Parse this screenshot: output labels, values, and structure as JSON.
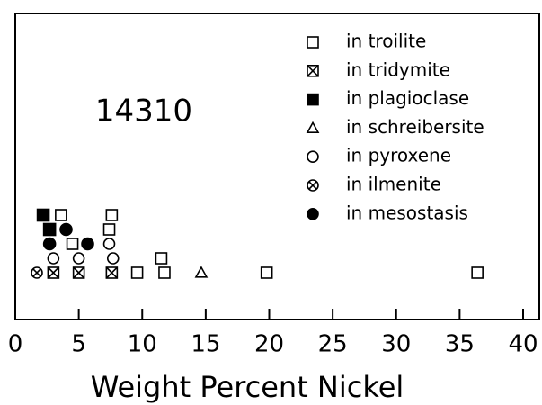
{
  "chart_data": {
    "type": "scatter",
    "annotation": "14310",
    "xlabel": "Weight Percent Nickel",
    "xlim": [
      0,
      40
    ],
    "xticks": [
      0,
      5,
      10,
      15,
      20,
      25,
      30,
      35,
      40
    ],
    "series": [
      {
        "name": "in troilite",
        "marker": "square-open",
        "color": "#000",
        "x": [
          9.6,
          11.75,
          19.8,
          36.4,
          11.5,
          4.5,
          7.4,
          3.6,
          7.6
        ],
        "y": [
          1,
          1,
          1,
          1,
          2,
          3,
          4,
          5,
          5
        ]
      },
      {
        "name": "in tridymite",
        "marker": "square-x",
        "color": "#000",
        "x": [
          3.0,
          5.0,
          7.6
        ],
        "y": [
          1,
          1,
          1
        ]
      },
      {
        "name": "in plagioclase",
        "marker": "square-filled",
        "color": "#000",
        "x": [
          2.7,
          2.2
        ],
        "y": [
          4,
          5
        ]
      },
      {
        "name": "in schreibersite",
        "marker": "triangle-open",
        "color": "#000",
        "x": [
          14.65
        ],
        "y": [
          1
        ]
      },
      {
        "name": "in pyroxene",
        "marker": "circle-open",
        "color": "#000",
        "x": [
          3.0,
          5.0,
          7.7,
          7.4
        ],
        "y": [
          2,
          2,
          2,
          3
        ]
      },
      {
        "name": "in ilmenite",
        "marker": "circle-x",
        "color": "#000",
        "x": [
          1.7
        ],
        "y": [
          1
        ]
      },
      {
        "name": "in mesostasis",
        "marker": "circle-filled",
        "color": "#000",
        "x": [
          2.7,
          5.7,
          4.0
        ],
        "y": [
          3,
          3,
          4
        ]
      }
    ]
  }
}
